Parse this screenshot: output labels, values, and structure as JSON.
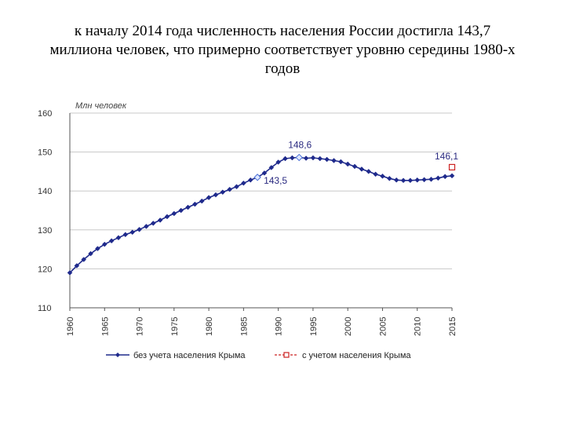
{
  "title_lines": [
    "к началу 2014 года численность населения России достигла 143,7",
    "миллиона человек, что примерно соответствует уровню середины 1980-х",
    "годов"
  ],
  "chart_data": {
    "type": "line",
    "unit_label": "Млн человек",
    "ylim": [
      110,
      160
    ],
    "yticks": [
      110,
      120,
      130,
      140,
      150,
      160
    ],
    "xlim": [
      1960,
      2015
    ],
    "xticks": [
      1960,
      1965,
      1970,
      1975,
      1980,
      1985,
      1990,
      1995,
      2000,
      2005,
      2010,
      2015
    ],
    "grid": "horizontal",
    "legend_position": "bottom",
    "series": [
      {
        "name": "без учета населения Крыма",
        "color": "#1f2a8c",
        "marker": "diamond",
        "x": [
          1960,
          1961,
          1962,
          1963,
          1964,
          1965,
          1966,
          1967,
          1968,
          1969,
          1970,
          1971,
          1972,
          1973,
          1974,
          1975,
          1976,
          1977,
          1978,
          1979,
          1980,
          1981,
          1982,
          1983,
          1984,
          1985,
          1986,
          1987,
          1988,
          1989,
          1990,
          1991,
          1992,
          1993,
          1994,
          1995,
          1996,
          1997,
          1998,
          1999,
          2000,
          2001,
          2002,
          2003,
          2004,
          2005,
          2006,
          2007,
          2008,
          2009,
          2010,
          2011,
          2012,
          2013,
          2014,
          2015
        ],
        "y": [
          119.0,
          120.8,
          122.4,
          123.9,
          125.2,
          126.3,
          127.2,
          128.0,
          128.8,
          129.4,
          130.1,
          130.9,
          131.7,
          132.5,
          133.4,
          134.2,
          135.0,
          135.8,
          136.6,
          137.4,
          138.3,
          139.0,
          139.7,
          140.4,
          141.1,
          142.0,
          142.8,
          143.5,
          144.6,
          146.0,
          147.4,
          148.3,
          148.5,
          148.6,
          148.4,
          148.5,
          148.3,
          148.1,
          147.8,
          147.5,
          146.9,
          146.3,
          145.6,
          145.0,
          144.3,
          143.8,
          143.2,
          142.8,
          142.7,
          142.7,
          142.8,
          142.9,
          143.0,
          143.3,
          143.7,
          143.9
        ]
      },
      {
        "name": "с учетом населения Крыма",
        "color": "#cc2222",
        "marker": "square-open",
        "x": [
          2015
        ],
        "y": [
          146.1
        ]
      }
    ],
    "annotations": [
      {
        "text": "148,6",
        "x": 1993,
        "y": 148.6,
        "highlight": true
      },
      {
        "text": "143,5",
        "x": 1987,
        "y": 143.5,
        "highlight": true
      },
      {
        "text": "146,1",
        "x": 2015,
        "y": 146.1,
        "highlight": false
      }
    ]
  }
}
